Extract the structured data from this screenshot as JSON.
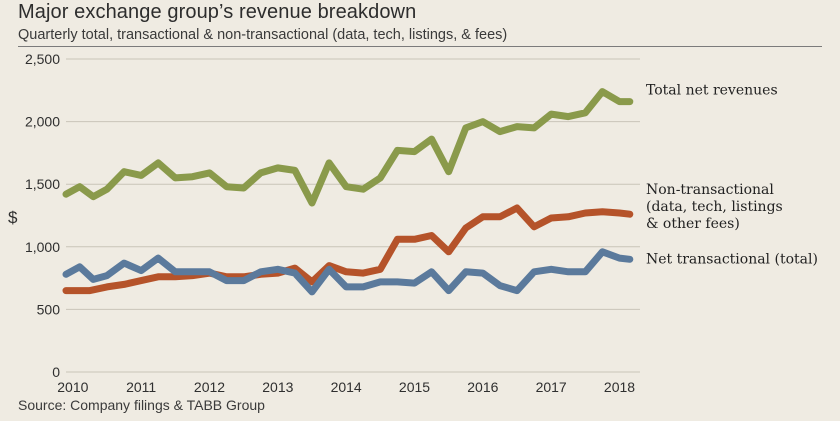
{
  "header": {
    "title": "Major exchange group’s revenue breakdown",
    "subtitle": "Quarterly total, transactional & non-transactional (data, tech, listings, & fees)"
  },
  "footer": {
    "source": "Source: Company filings & TABB Group"
  },
  "colors": {
    "total": "#8a9a4b",
    "nontrans": "#b5532a",
    "trans": "#5b7a9c",
    "grid": "#c9c4b8",
    "background": "#efebe2"
  },
  "chart_data": {
    "type": "line",
    "title": "Major exchange group’s revenue breakdown",
    "subtitle": "Quarterly total, transactional & non-transactional (data, tech, listings, & fees)",
    "xlabel": "",
    "ylabel": "$",
    "ylim": [
      0,
      2500
    ],
    "yticks": [
      0,
      500,
      1000,
      1500,
      2000,
      2500
    ],
    "ytick_labels": [
      "0",
      "500",
      "1,000",
      "1,500",
      "2,000",
      "2,500"
    ],
    "xlim": [
      2009.9,
      2018.3
    ],
    "xticks": [
      2010,
      2011,
      2012,
      2013,
      2014,
      2015,
      2016,
      2017,
      2018
    ],
    "xtick_labels": [
      "2010",
      "2011",
      "2012",
      "2013",
      "2014",
      "2015",
      "2016",
      "2017",
      "2018"
    ],
    "grid": true,
    "series": [
      {
        "key": "total",
        "name": "Total net revenues",
        "legend_lines": [
          "Total net revenues"
        ],
        "color": "#8a9a4b",
        "x": [
          2009.9,
          2010.1,
          2010.3,
          2010.5,
          2010.75,
          2011.0,
          2011.25,
          2011.5,
          2011.75,
          2012.0,
          2012.25,
          2012.5,
          2012.75,
          2013.0,
          2013.25,
          2013.5,
          2013.75,
          2014.0,
          2014.25,
          2014.5,
          2014.75,
          2015.0,
          2015.25,
          2015.5,
          2015.75,
          2016.0,
          2016.25,
          2016.5,
          2016.75,
          2017.0,
          2017.25,
          2017.5,
          2017.75,
          2018.0,
          2018.15
        ],
        "values": [
          1420,
          1480,
          1400,
          1460,
          1600,
          1570,
          1670,
          1550,
          1560,
          1590,
          1480,
          1470,
          1590,
          1630,
          1610,
          1350,
          1670,
          1480,
          1460,
          1550,
          1770,
          1760,
          1860,
          1600,
          1950,
          2000,
          1920,
          1960,
          1950,
          2060,
          2040,
          2070,
          2240,
          2160,
          2160
        ]
      },
      {
        "key": "nontrans",
        "name": "Non-transactional (data, tech, listings & other fees)",
        "legend_lines": [
          "Non-transactional",
          "(data, tech, listings",
          "& other fees)"
        ],
        "color": "#b5532a",
        "x": [
          2009.9,
          2010.25,
          2010.5,
          2010.75,
          2011.0,
          2011.25,
          2011.5,
          2011.75,
          2012.0,
          2012.25,
          2012.5,
          2012.75,
          2013.0,
          2013.25,
          2013.5,
          2013.75,
          2014.0,
          2014.25,
          2014.5,
          2014.75,
          2015.0,
          2015.25,
          2015.5,
          2015.75,
          2016.0,
          2016.25,
          2016.5,
          2016.75,
          2017.0,
          2017.25,
          2017.5,
          2017.75,
          2018.0,
          2018.15
        ],
        "values": [
          650,
          650,
          680,
          700,
          730,
          760,
          760,
          770,
          790,
          760,
          760,
          780,
          790,
          830,
          720,
          850,
          800,
          790,
          820,
          1060,
          1060,
          1090,
          960,
          1150,
          1240,
          1240,
          1310,
          1160,
          1230,
          1240,
          1270,
          1280,
          1270,
          1260
        ]
      },
      {
        "key": "trans",
        "name": "Net transactional (total)",
        "legend_lines": [
          "Net transactional (total)"
        ],
        "color": "#5b7a9c",
        "x": [
          2009.9,
          2010.1,
          2010.3,
          2010.5,
          2010.75,
          2011.0,
          2011.25,
          2011.5,
          2011.75,
          2012.0,
          2012.25,
          2012.5,
          2012.75,
          2013.0,
          2013.25,
          2013.5,
          2013.75,
          2014.0,
          2014.25,
          2014.5,
          2014.75,
          2015.0,
          2015.25,
          2015.5,
          2015.75,
          2016.0,
          2016.25,
          2016.5,
          2016.75,
          2017.0,
          2017.25,
          2017.5,
          2017.75,
          2018.0,
          2018.15
        ],
        "values": [
          780,
          840,
          740,
          770,
          870,
          810,
          910,
          800,
          800,
          800,
          730,
          730,
          800,
          820,
          790,
          640,
          820,
          680,
          680,
          720,
          720,
          710,
          800,
          650,
          800,
          790,
          690,
          650,
          800,
          820,
          800,
          800,
          960,
          910,
          900
        ]
      }
    ]
  }
}
